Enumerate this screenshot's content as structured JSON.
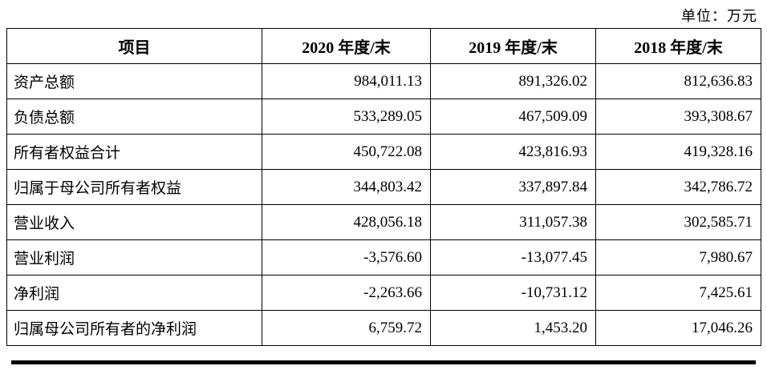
{
  "unit_label": "单位：万元",
  "table": {
    "headers": [
      "项目",
      "2020 年度/末",
      "2019 年度/末",
      "2018 年度/末"
    ],
    "rows": [
      {
        "label": "资产总额",
        "values": [
          "984,011.13",
          "891,326.02",
          "812,636.83"
        ]
      },
      {
        "label": "负债总额",
        "values": [
          "533,289.05",
          "467,509.09",
          "393,308.67"
        ]
      },
      {
        "label": "所有者权益合计",
        "values": [
          "450,722.08",
          "423,816.93",
          "419,328.16"
        ]
      },
      {
        "label": "归属于母公司所有者权益",
        "values": [
          "344,803.42",
          "337,897.84",
          "342,786.72"
        ]
      },
      {
        "label": "营业收入",
        "values": [
          "428,056.18",
          "311,057.38",
          "302,585.71"
        ]
      },
      {
        "label": "营业利润",
        "values": [
          "-3,576.60",
          "-13,077.45",
          "7,980.67"
        ]
      },
      {
        "label": "净利润",
        "values": [
          "-2,263.66",
          "-10,731.12",
          "7,425.61"
        ]
      },
      {
        "label": "归属母公司所有者的净利润",
        "values": [
          "6,759.72",
          "1,453.20",
          "17,046.26"
        ]
      }
    ]
  }
}
